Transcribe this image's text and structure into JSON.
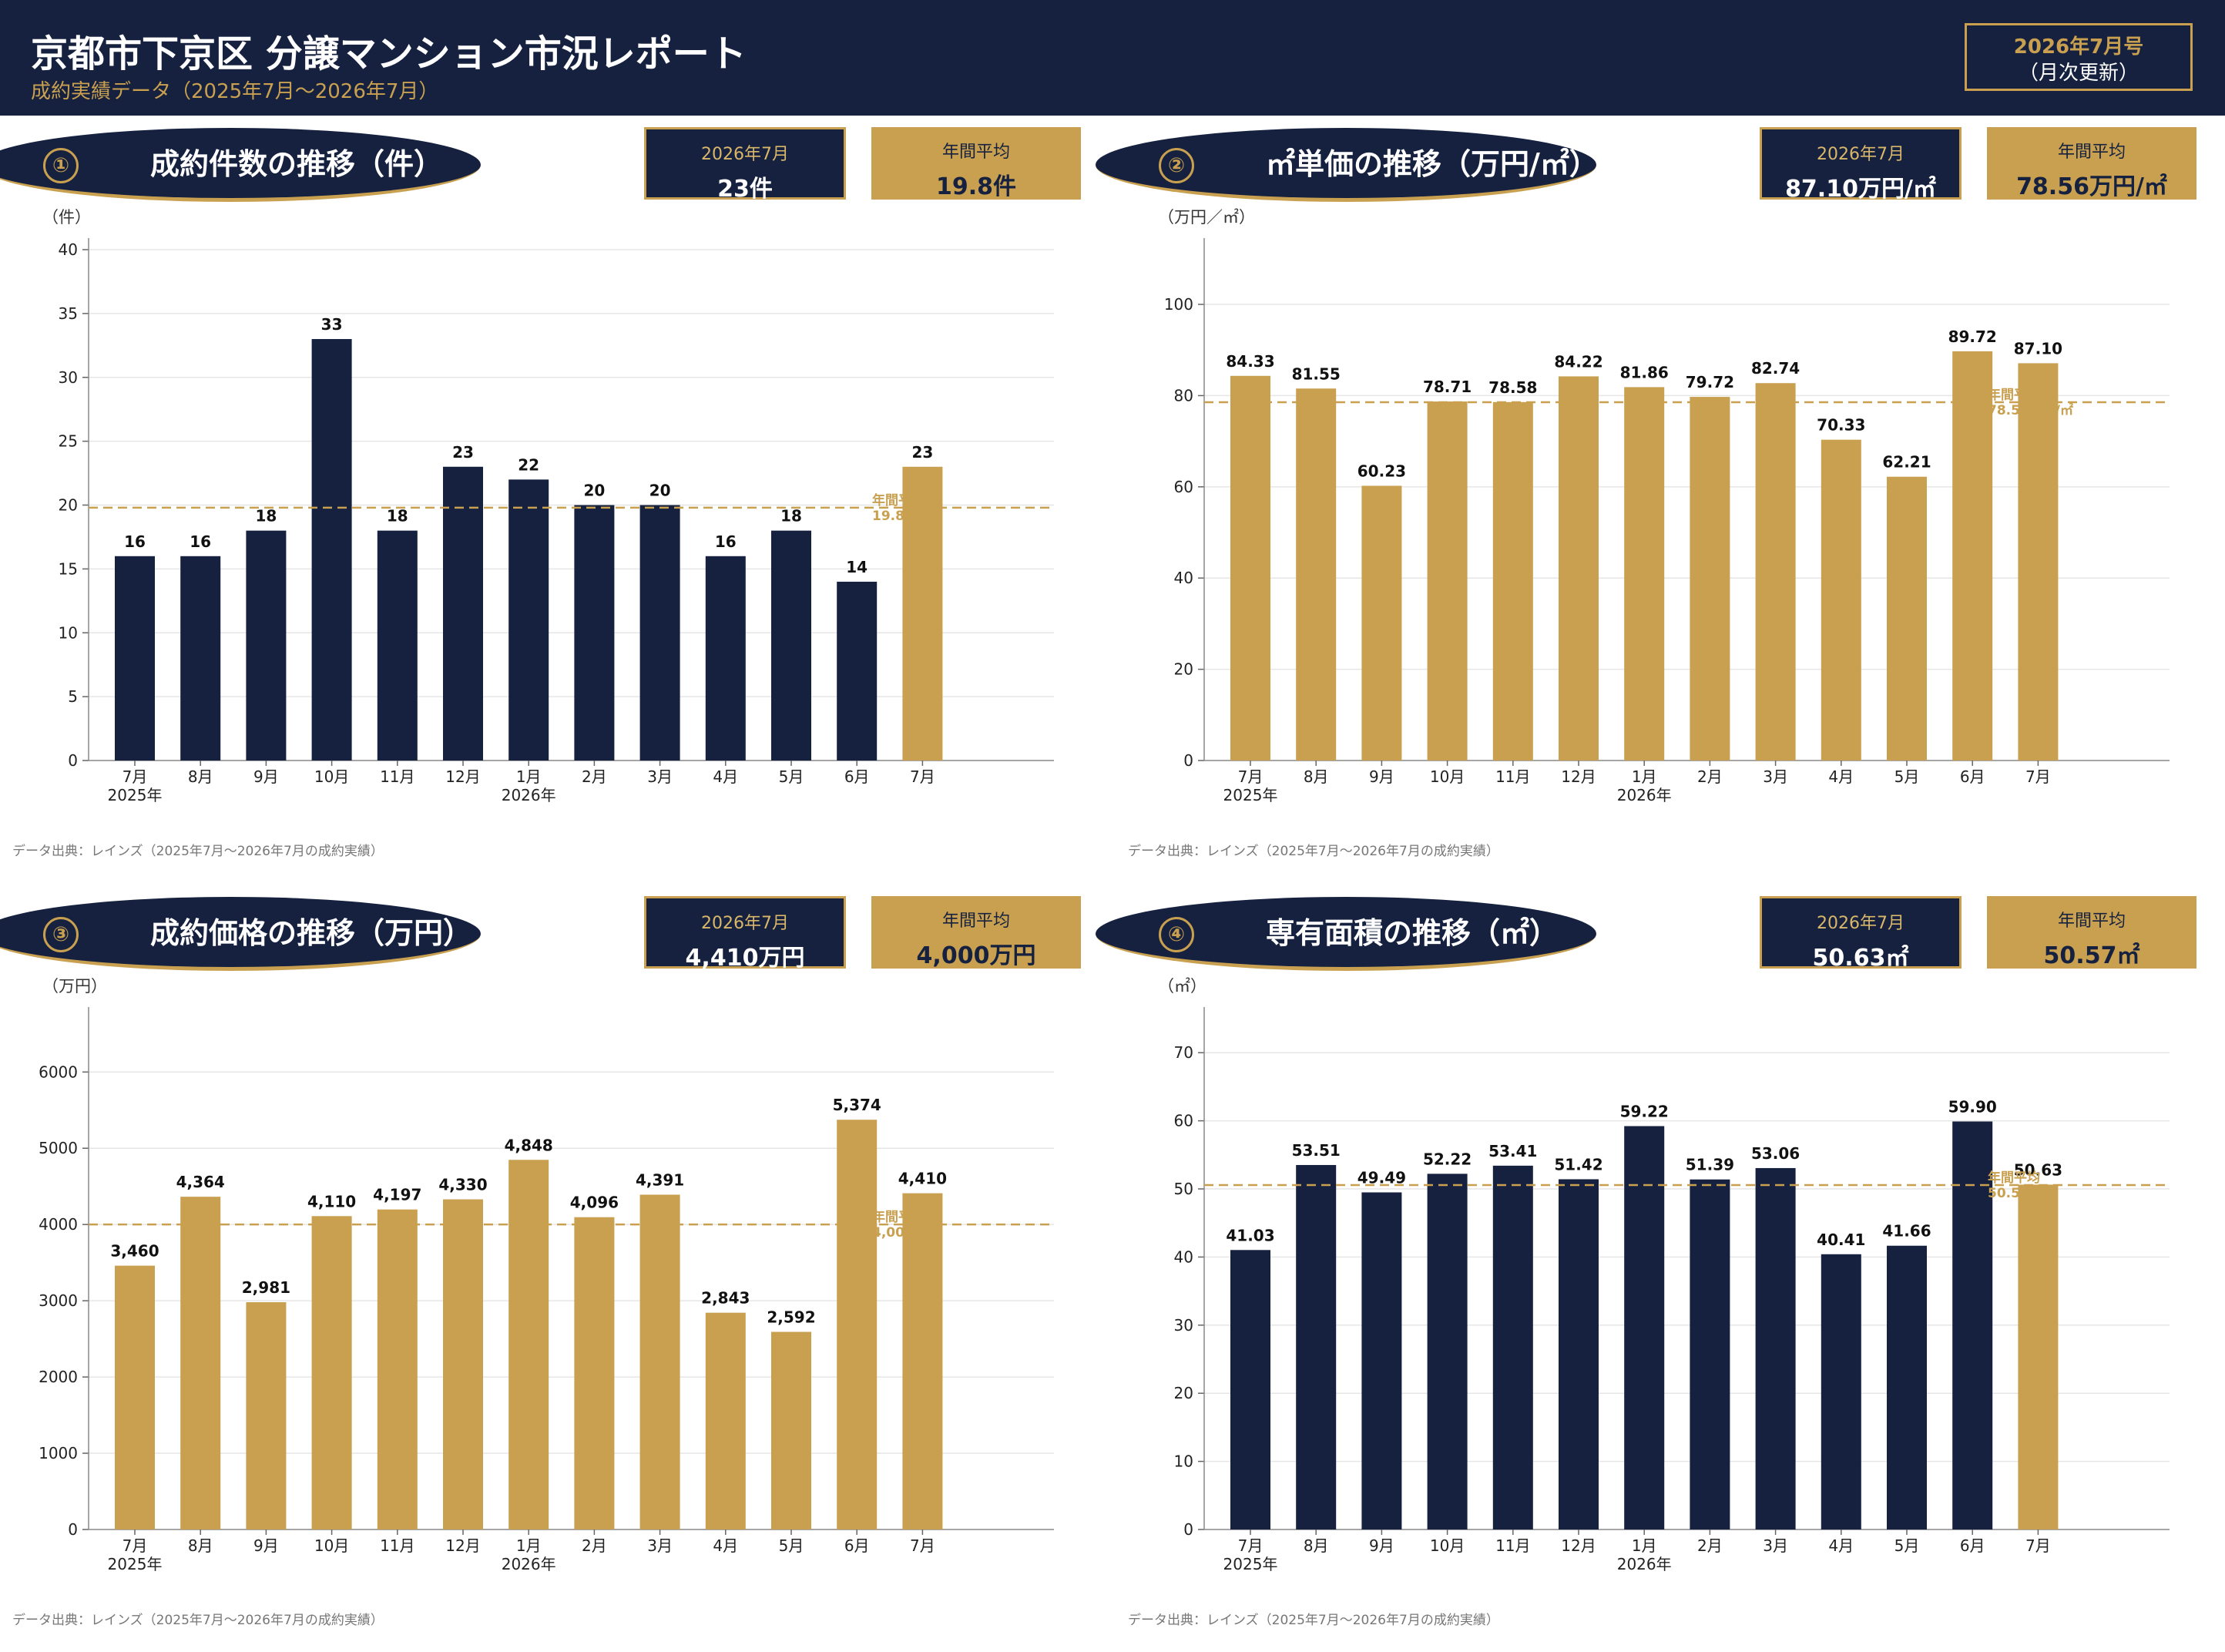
{
  "header": {
    "title": "京都市下京区 分譲マンション市況レポート",
    "subtitle": "成約実績データ（2025年7月〜2026年7月）",
    "issue": "2026年7月号",
    "update": "（月次更新）"
  },
  "colors": {
    "navy": "#15213f",
    "gold": "#c8a050"
  },
  "panels": [
    {
      "num": "①",
      "title": "成約件数の推移（件）",
      "unit": "（件）",
      "kpi_current_label": "2026年7月",
      "kpi_current_value": "23件",
      "kpi_avg_label": "年間平均",
      "kpi_avg_value": "19.8件",
      "source": "データ出典：レインズ（2025年7月〜2026年7月の成約実績）"
    },
    {
      "num": "②",
      "title": "㎡単価の推移（万円/㎡）",
      "unit": "（万円／㎡）",
      "kpi_current_label": "2026年7月",
      "kpi_current_value": "87.10万円/㎡",
      "kpi_avg_label": "年間平均",
      "kpi_avg_value": "78.56万円/㎡",
      "source": "データ出典：レインズ（2025年7月〜2026年7月の成約実績）"
    },
    {
      "num": "③",
      "title": "成約価格の推移（万円）",
      "unit": "（万円）",
      "kpi_current_label": "2026年7月",
      "kpi_current_value": "4,410万円",
      "kpi_avg_label": "年間平均",
      "kpi_avg_value": "4,000万円",
      "source": "データ出典：レインズ（2025年7月〜2026年7月の成約実績）"
    },
    {
      "num": "④",
      "title": "専有面積の推移（㎡）",
      "unit": "（㎡）",
      "kpi_current_label": "2026年7月",
      "kpi_current_value": "50.63㎡",
      "kpi_avg_label": "年間平均",
      "kpi_avg_value": "50.57㎡",
      "source": "データ出典：レインズ（2025年7月〜2026年7月の成約実績）"
    }
  ],
  "chart_data": [
    {
      "type": "bar",
      "categories": [
        "7月",
        "8月",
        "9月",
        "10月",
        "11月",
        "12月",
        "1月",
        "2月",
        "3月",
        "4月",
        "5月",
        "6月",
        "7月"
      ],
      "year_labels": [
        "2025年",
        "",
        "",
        "",
        "",
        "",
        "2026年",
        "",
        "",
        "",
        "",
        "",
        ""
      ],
      "values": [
        16,
        16,
        18,
        33,
        18,
        23,
        22,
        20,
        20,
        16,
        18,
        14,
        23
      ],
      "data_labels": [
        "16",
        "16",
        "18",
        "33",
        "18",
        "23",
        "22",
        "20",
        "20",
        "16",
        "18",
        "14",
        "23"
      ],
      "bar_colors": [
        "navy",
        "navy",
        "navy",
        "navy",
        "navy",
        "navy",
        "navy",
        "navy",
        "navy",
        "navy",
        "navy",
        "navy",
        "gold"
      ],
      "yticks": [
        0,
        5,
        10,
        15,
        20,
        25,
        30,
        35,
        40
      ],
      "ylim": [
        0,
        40
      ],
      "avg_value": 19.8,
      "avg_label_1": "年間平均",
      "avg_label_2": "19.8件",
      "grid": true
    },
    {
      "type": "bar",
      "categories": [
        "7月",
        "8月",
        "9月",
        "10月",
        "11月",
        "12月",
        "1月",
        "2月",
        "3月",
        "4月",
        "5月",
        "6月",
        "7月"
      ],
      "year_labels": [
        "2025年",
        "",
        "",
        "",
        "",
        "",
        "2026年",
        "",
        "",
        "",
        "",
        "",
        ""
      ],
      "values": [
        84.33,
        81.55,
        60.23,
        78.71,
        78.58,
        84.22,
        81.86,
        79.72,
        82.74,
        70.33,
        62.21,
        89.72,
        87.1
      ],
      "data_labels": [
        "84.33",
        "81.55",
        "60.23",
        "78.71",
        "78.58",
        "84.22",
        "81.86",
        "79.72",
        "82.74",
        "70.33",
        "62.21",
        "89.72",
        "87.10"
      ],
      "bar_colors": [
        "gold",
        "gold",
        "gold",
        "gold",
        "gold",
        "gold",
        "gold",
        "gold",
        "gold",
        "gold",
        "gold",
        "gold",
        "gold"
      ],
      "yticks": [
        0,
        20,
        40,
        60,
        80,
        100
      ],
      "ylim": [
        0,
        112
      ],
      "avg_value": 78.56,
      "avg_label_1": "年間平均",
      "avg_label_2": "78.56万円/㎡",
      "grid": true
    },
    {
      "type": "bar",
      "categories": [
        "7月",
        "8月",
        "9月",
        "10月",
        "11月",
        "12月",
        "1月",
        "2月",
        "3月",
        "4月",
        "5月",
        "6月",
        "7月"
      ],
      "year_labels": [
        "2025年",
        "",
        "",
        "",
        "",
        "",
        "2026年",
        "",
        "",
        "",
        "",
        "",
        ""
      ],
      "values": [
        3460,
        4364,
        2981,
        4110,
        4197,
        4330,
        4848,
        4096,
        4391,
        2843,
        2592,
        5374,
        4410
      ],
      "data_labels": [
        "3,460",
        "4,364",
        "2,981",
        "4,110",
        "4,197",
        "4,330",
        "4,848",
        "4,096",
        "4,391",
        "2,843",
        "2,592",
        "5,374",
        "4,410"
      ],
      "bar_colors": [
        "gold",
        "gold",
        "gold",
        "gold",
        "gold",
        "gold",
        "gold",
        "gold",
        "gold",
        "gold",
        "gold",
        "gold",
        "gold"
      ],
      "yticks": [
        0,
        1000,
        2000,
        3000,
        4000,
        5000,
        6000
      ],
      "ylim": [
        0,
        6700
      ],
      "avg_value": 4000,
      "avg_label_1": "年間平均",
      "avg_label_2": "4,000万円",
      "grid": true
    },
    {
      "type": "bar",
      "categories": [
        "7月",
        "8月",
        "9月",
        "10月",
        "11月",
        "12月",
        "1月",
        "2月",
        "3月",
        "4月",
        "5月",
        "6月",
        "7月"
      ],
      "year_labels": [
        "2025年",
        "",
        "",
        "",
        "",
        "",
        "2026年",
        "",
        "",
        "",
        "",
        "",
        ""
      ],
      "values": [
        41.03,
        53.51,
        49.49,
        52.22,
        53.41,
        51.42,
        59.22,
        51.39,
        53.06,
        40.41,
        41.66,
        59.9,
        50.63
      ],
      "data_labels": [
        "41.03",
        "53.51",
        "49.49",
        "52.22",
        "53.41",
        "51.42",
        "59.22",
        "51.39",
        "53.06",
        "40.41",
        "41.66",
        "59.90",
        "50.63"
      ],
      "bar_colors": [
        "navy",
        "navy",
        "navy",
        "navy",
        "navy",
        "navy",
        "navy",
        "navy",
        "navy",
        "navy",
        "navy",
        "navy",
        "gold"
      ],
      "yticks": [
        0,
        10,
        20,
        30,
        40,
        50,
        60,
        70
      ],
      "ylim": [
        0,
        75
      ],
      "avg_value": 50.57,
      "avg_label_1": "年間平均",
      "avg_label_2": "50.57㎡",
      "grid": true
    }
  ]
}
